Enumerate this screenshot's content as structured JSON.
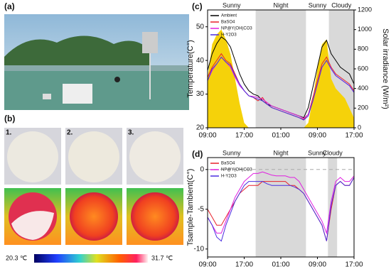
{
  "panels": {
    "a": "(a)",
    "b": "(b)"
  },
  "photo_labels": [
    "1.",
    "2.",
    "3."
  ],
  "colorbar": {
    "min_label": "20.3 ℃",
    "max_label": "31.7 ℃"
  },
  "chart_data": [
    {
      "type": "line",
      "title": "(c)",
      "ylabel": "Temperature(C°)",
      "y2label": "Solar irradiance (W/m²)",
      "x": [
        0,
        1,
        2,
        3,
        4,
        5,
        6,
        7,
        8,
        9,
        10,
        11,
        12,
        13,
        14,
        15,
        16,
        17,
        18,
        19,
        20,
        21,
        22,
        23,
        24,
        25,
        26,
        27,
        28,
        29,
        30,
        31,
        32
      ],
      "xlim": [
        0,
        32
      ],
      "xticks": [
        {
          "value": 0,
          "label": "09:00"
        },
        {
          "value": 8,
          "label": "17:00"
        },
        {
          "value": 16,
          "label": "01:00"
        },
        {
          "value": 24,
          "label": "09:00"
        },
        {
          "value": 32,
          "label": "17:00"
        }
      ],
      "ylim": [
        20,
        55
      ],
      "yticks": [
        20,
        30,
        40,
        50
      ],
      "y2lim": [
        0,
        1200
      ],
      "y2ticks": [
        0,
        200,
        400,
        600,
        800,
        1000,
        1200
      ],
      "regions": [
        {
          "label": "Sunny",
          "span": [
            0,
            10.5
          ],
          "shaded": false
        },
        {
          "label": "Night",
          "span": [
            10.5,
            21.5
          ],
          "shaded": true
        },
        {
          "label": "Sunny",
          "span": [
            21.5,
            26.5
          ],
          "shaded": false
        },
        {
          "label": "Cloudy",
          "span": [
            26.5,
            32
          ],
          "shaded": true
        }
      ],
      "irradiance": {
        "color": "#f5d20a",
        "axis": "y2",
        "values": [
          500,
          850,
          950,
          1000,
          900,
          750,
          500,
          250,
          50,
          0,
          0,
          0,
          0,
          0,
          0,
          0,
          0,
          0,
          0,
          0,
          0,
          0,
          50,
          300,
          600,
          850,
          900,
          500,
          400,
          350,
          300,
          200,
          100
        ]
      },
      "series": [
        {
          "name": "Ambient",
          "color": "#000000",
          "values": [
            37,
            42,
            45,
            47,
            46,
            44,
            40,
            36,
            33,
            31,
            30,
            29.5,
            28,
            27,
            26.5,
            26,
            25.5,
            25,
            24.5,
            24,
            23.5,
            23,
            26,
            32,
            38,
            44,
            46,
            42,
            40,
            38,
            37,
            36,
            33
          ]
        },
        {
          "name": "BaSO4",
          "color": "#e8212b",
          "values": [
            35,
            38,
            40,
            42,
            40,
            39,
            36,
            33,
            31,
            29.5,
            29,
            28,
            29,
            27,
            26,
            25.5,
            25,
            24.5,
            24,
            23.5,
            23,
            22.5,
            24,
            29,
            34,
            39,
            41,
            38,
            36,
            35,
            34,
            33,
            31
          ]
        },
        {
          "name": "NP@Y(OH)CO3",
          "color": "#e020e0",
          "values": [
            34,
            37,
            39,
            41,
            39.5,
            38,
            35,
            32.5,
            31,
            29.5,
            29.3,
            29,
            28.5,
            27.5,
            26.5,
            26,
            25.5,
            25,
            24.5,
            24,
            23.5,
            22.8,
            24,
            28,
            33,
            38,
            40,
            37.5,
            35.5,
            34.5,
            33.5,
            32.5,
            30.5
          ]
        },
        {
          "name": "H-Y2O3",
          "color": "#4a2ee0",
          "values": [
            34,
            37.5,
            39,
            41,
            39.5,
            38.5,
            35.5,
            33,
            31,
            29.5,
            29,
            28.5,
            28,
            27,
            26,
            25.5,
            25,
            24.5,
            24,
            23.5,
            23,
            22.3,
            23.5,
            28,
            33,
            38,
            40,
            37.5,
            35.5,
            34.5,
            33.5,
            32.5,
            30.5
          ]
        }
      ],
      "legend": "top-left"
    },
    {
      "type": "line",
      "title": "(d)",
      "ylabel": "Tsample-Tambient(C°)",
      "x": [
        0,
        1,
        2,
        3,
        4,
        5,
        6,
        7,
        8,
        9,
        10,
        11,
        12,
        13,
        14,
        15,
        16,
        17,
        18,
        19,
        20,
        21,
        22,
        23,
        24,
        25,
        26,
        27,
        28,
        29,
        30,
        31,
        32
      ],
      "xlim": [
        0,
        32
      ],
      "xticks": [
        {
          "value": 0,
          "label": "09:00"
        },
        {
          "value": 8,
          "label": "17:00"
        },
        {
          "value": 16,
          "label": "01:00"
        },
        {
          "value": 24,
          "label": "09:00"
        },
        {
          "value": 32,
          "label": "17:00"
        }
      ],
      "ylim": [
        -11,
        1.5
      ],
      "yticks": [
        -10,
        -5,
        0
      ],
      "reference_line": 0,
      "regions": [
        {
          "label": "Sunny",
          "span": [
            0,
            10.5
          ],
          "shaded": false
        },
        {
          "label": "Night",
          "span": [
            10.5,
            21.5
          ],
          "shaded": true
        },
        {
          "label": "Sunny",
          "span": [
            21.5,
            26.3
          ],
          "shaded": false
        },
        {
          "label": "Cloudy",
          "span": [
            26.3,
            28.3
          ],
          "shaded": true
        }
      ],
      "series": [
        {
          "name": "BaSO4",
          "color": "#e8212b",
          "values": [
            -5,
            -6,
            -7,
            -7,
            -6,
            -5,
            -4,
            -3,
            -2.5,
            -2,
            -2,
            -2,
            -1.5,
            -1.5,
            -1.5,
            -1.5,
            -1.5,
            -1.5,
            -2,
            -2,
            -2.5,
            -3,
            -4,
            -5,
            -6,
            -7,
            -9,
            -5,
            -2,
            -1.5,
            -2,
            -2,
            -1
          ]
        },
        {
          "name": "NP@Y(OH)CO3",
          "color": "#e020e0",
          "values": [
            -6,
            -7,
            -8,
            -8,
            -6.5,
            -5,
            -3.5,
            -2.5,
            -1.5,
            -1,
            -0.5,
            -0.5,
            -0.3,
            -0.5,
            -0.7,
            -0.8,
            -0.8,
            -0.8,
            -1,
            -1,
            -1.5,
            -2.5,
            -3.5,
            -4.5,
            -5.5,
            -6.5,
            -8,
            -4,
            -1.5,
            -1,
            -1.5,
            -1.5,
            -0.8
          ]
        },
        {
          "name": "H-Y2O3",
          "color": "#4a2ee0",
          "values": [
            -6,
            -7,
            -8.5,
            -9,
            -7,
            -5.5,
            -4,
            -3,
            -2,
            -1.5,
            -1.5,
            -1.5,
            -1.5,
            -1.8,
            -2,
            -2,
            -2,
            -2,
            -2,
            -2.2,
            -2.5,
            -3,
            -4,
            -5,
            -6,
            -7,
            -9,
            -4.5,
            -2,
            -1.5,
            -2,
            -2,
            -1
          ]
        }
      ],
      "legend": "top-left"
    }
  ]
}
